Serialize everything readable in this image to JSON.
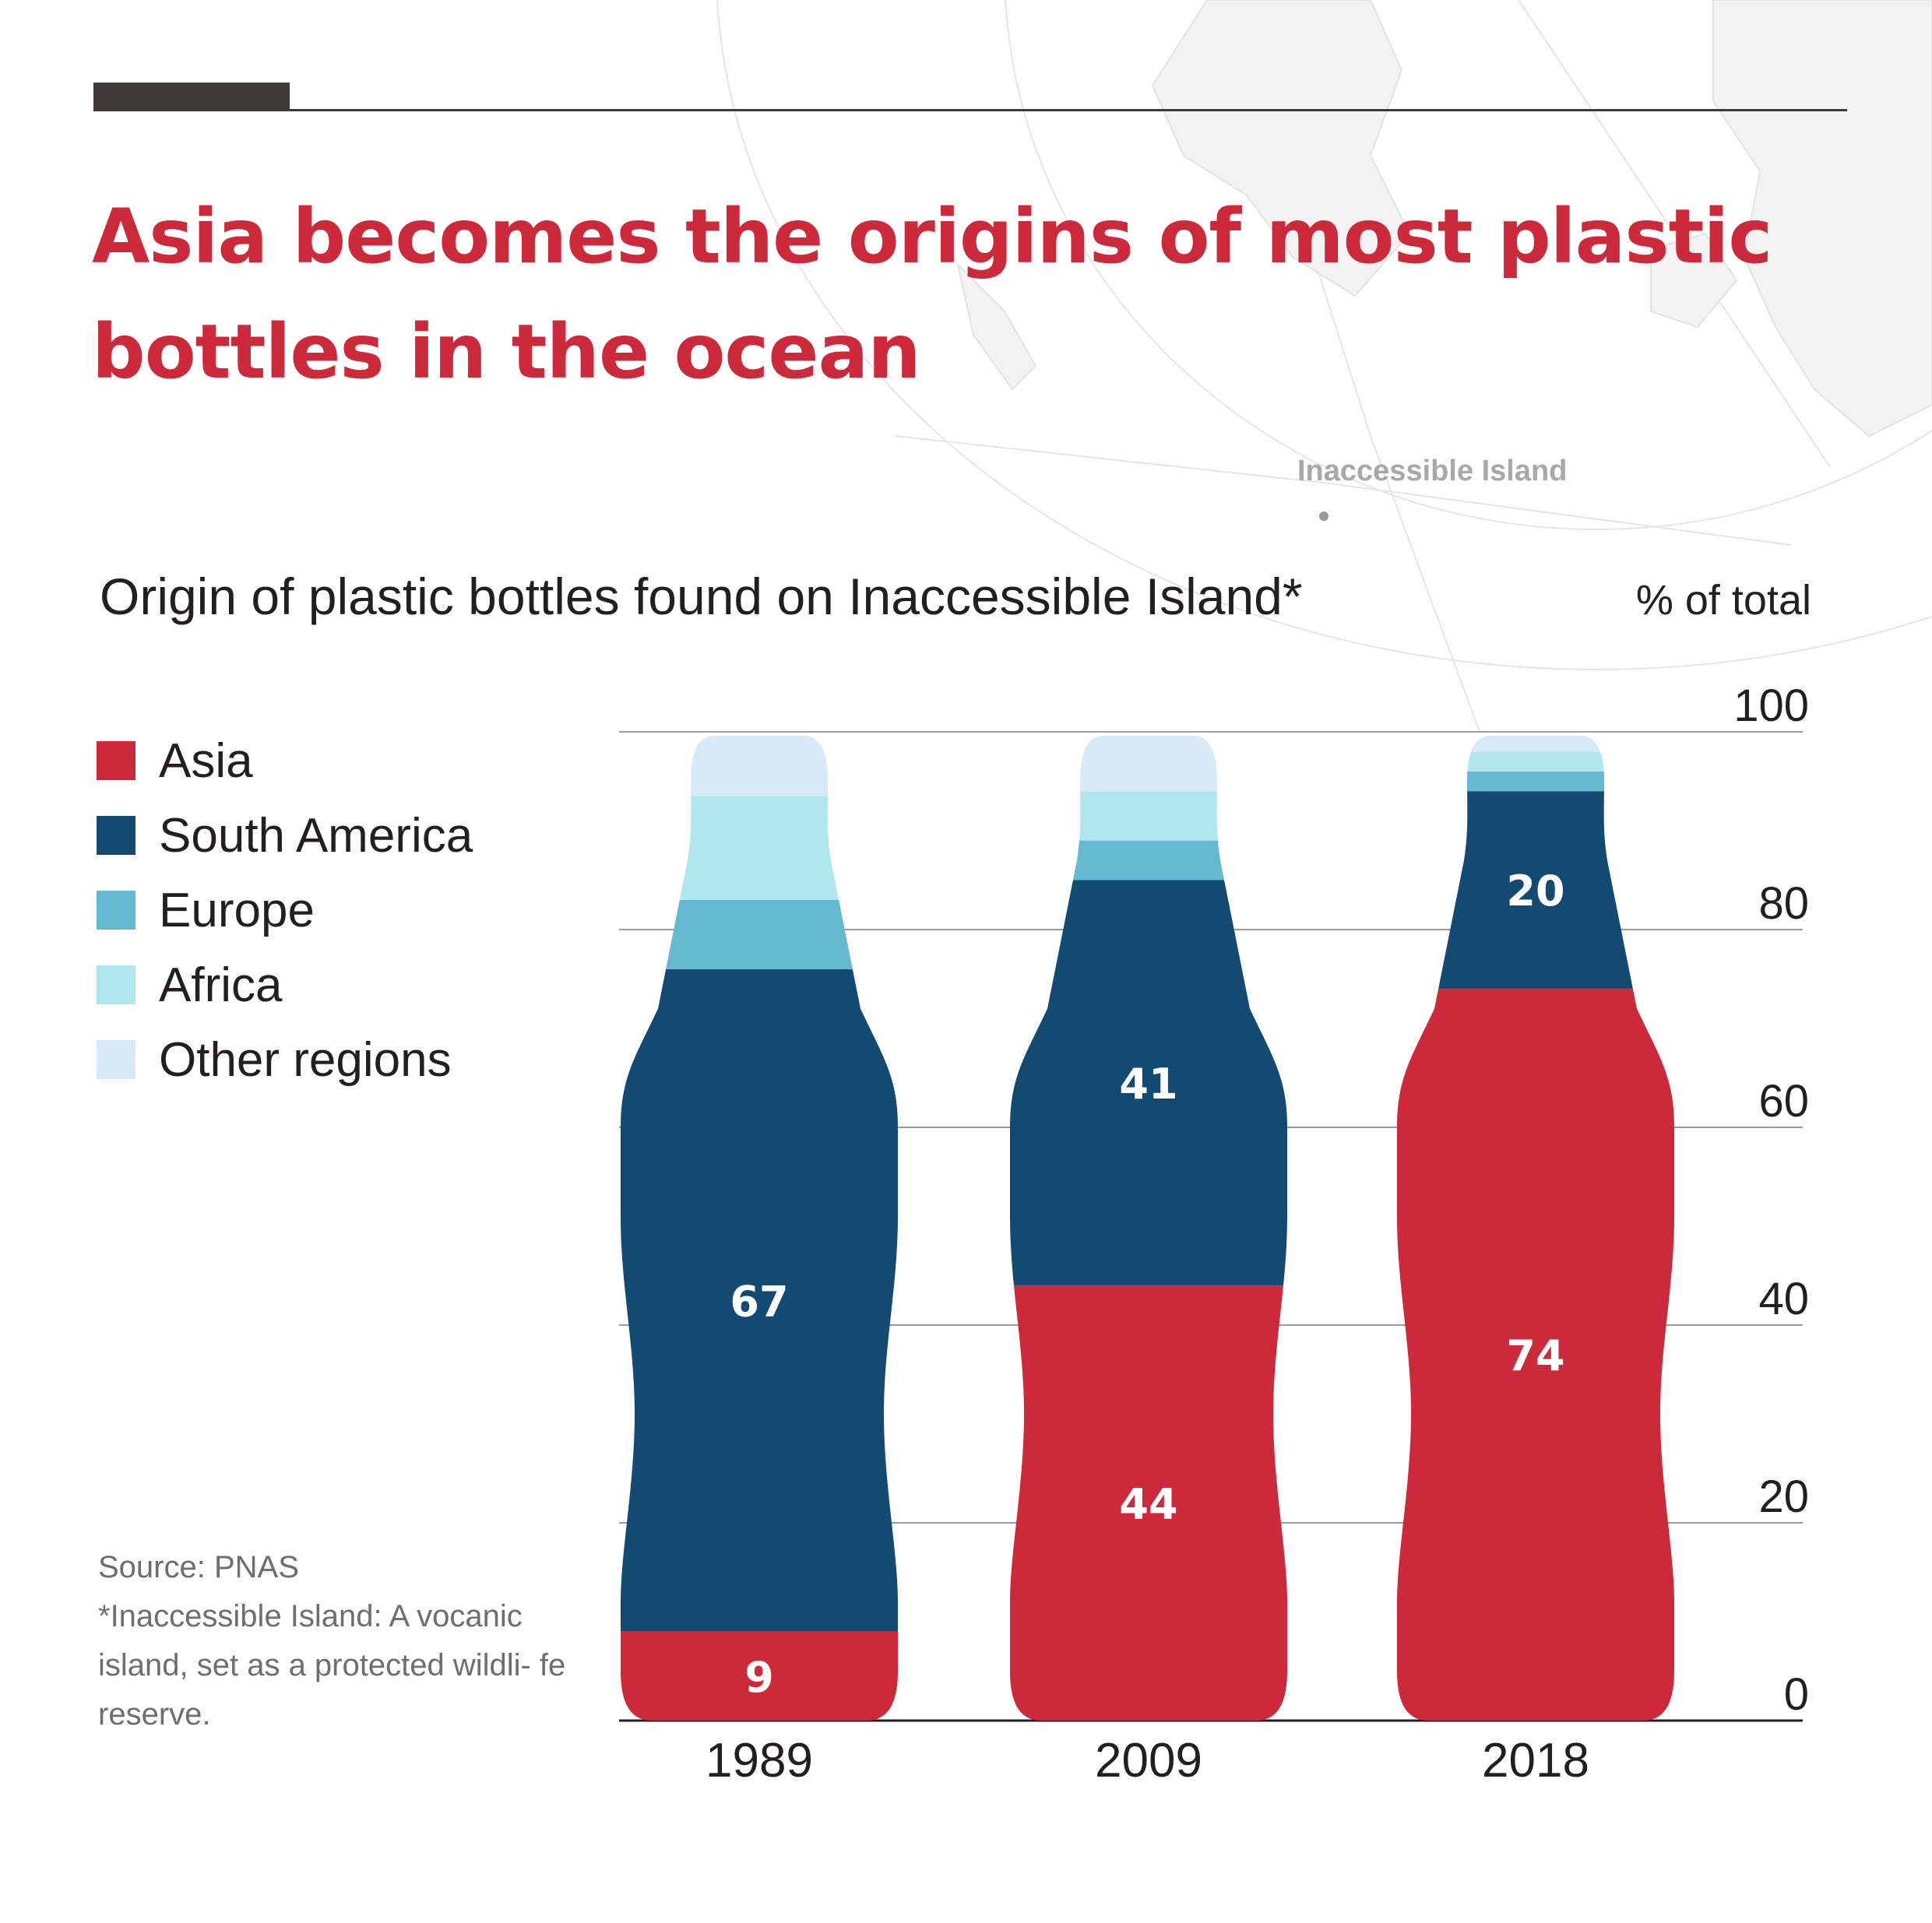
{
  "header": {
    "title": "Asia becomes the origins of most plastic bottles in the ocean"
  },
  "map": {
    "place_label": "Inaccessible Island"
  },
  "colors": {
    "accent": "#cc2a3b",
    "asia": "#cc2a3b",
    "south_america": "#124a72",
    "europe": "#64b8d0",
    "africa": "#b0e6ee",
    "other": "#d8eaf8"
  },
  "legend": {
    "items": [
      {
        "label": "Asia",
        "color": "#cc2a3b"
      },
      {
        "label": "South America",
        "color": "#124a72"
      },
      {
        "label": "Europe",
        "color": "#64b8d0"
      },
      {
        "label": "Africa",
        "color": "#b0e6ee"
      },
      {
        "label": "Other regions",
        "color": "#d8eaf8"
      }
    ]
  },
  "notes": {
    "source": "Source: PNAS",
    "footnote": "*Inaccessible Island: A vocanic island, set as a protected wildli- fe reserve."
  },
  "chart_data": {
    "type": "bar",
    "stacked": true,
    "title": "Origin of plastic bottles found on Inaccessible Island*",
    "unit_label": "% of total",
    "categories": [
      "1989",
      "2009",
      "2018"
    ],
    "ylim": [
      0,
      100
    ],
    "yticks": [
      0,
      20,
      40,
      60,
      80,
      100
    ],
    "y_axis_side": "right",
    "grid": true,
    "series": [
      {
        "name": "Asia",
        "color": "#cc2a3b",
        "values": [
          9,
          44,
          74
        ],
        "labels": [
          "9",
          "44",
          "74"
        ]
      },
      {
        "name": "South America",
        "color": "#124a72",
        "values": [
          67,
          41,
          20
        ],
        "labels": [
          "67",
          "41",
          "20"
        ]
      },
      {
        "name": "Europe",
        "color": "#64b8d0",
        "values": [
          7,
          4,
          2
        ],
        "labels": [
          "",
          "",
          ""
        ]
      },
      {
        "name": "Africa",
        "color": "#b0e6ee",
        "values": [
          10.5,
          5,
          2
        ],
        "labels": [
          "",
          "",
          ""
        ]
      },
      {
        "name": "Other regions",
        "color": "#d8eaf8",
        "values": [
          6.5,
          6,
          2
        ],
        "labels": [
          "",
          "",
          ""
        ]
      }
    ]
  }
}
